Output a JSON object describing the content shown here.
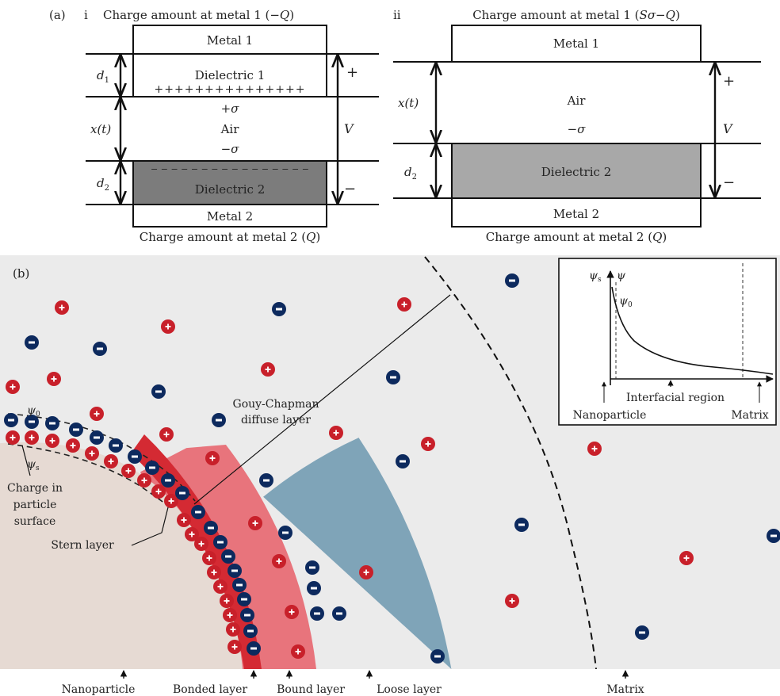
{
  "panel_a": {
    "label": "(a)",
    "i": {
      "roman": "i",
      "top_caption_prefix": "Charge amount at metal 1 (",
      "top_caption_math": "−Q",
      "top_caption_suffix": ")",
      "metal1": "Metal 1",
      "dielectric1": "Dielectric 1",
      "plus_row": "+++++++++++++++",
      "plus_sigma": "+σ",
      "air": "Air",
      "minus_sigma": "−σ",
      "minus_row": "− − − − − − − − − − − − − − − −",
      "dielectric2": "Dielectric 2",
      "metal2": "Metal 2",
      "d1": "d",
      "d1_sub": "1",
      "xt": "x(t)",
      "d2": "d",
      "d2_sub": "2",
      "plus": "+",
      "V": "V",
      "minus": "−",
      "bottom_caption_prefix": "Charge amount at metal 2 (",
      "bottom_caption_math": "Q",
      "bottom_caption_suffix": ")"
    },
    "ii": {
      "roman": "ii",
      "top_caption_prefix": "Charge amount at metal 1 (",
      "top_caption_math": "Sσ−Q",
      "top_caption_suffix": ")",
      "metal1": "Metal 1",
      "air": "Air",
      "minus_sigma": "−σ",
      "dielectric2": "Dielectric 2",
      "metal2": "Metal 2",
      "xt": "x(t)",
      "d2": "d",
      "d2_sub": "2",
      "plus": "+",
      "V": "V",
      "minus": "−",
      "bottom_caption_prefix": "Charge amount at metal 2 (",
      "bottom_caption_math": "Q",
      "bottom_caption_suffix": ")"
    }
  },
  "panel_b": {
    "label": "(b)",
    "psi0": "ψ",
    "psi0_sub": "0",
    "psis": "ψ",
    "psis_sub": "s",
    "charge_label": [
      "Charge in",
      "particle",
      "surface"
    ],
    "stern_label": "Stern layer",
    "gouy_label": [
      "Gouy-Chapman",
      "diffuse layer"
    ],
    "bottom_labels": {
      "nanoparticle": "Nanoparticle",
      "bonded": "Bonded layer",
      "bound": "Bound layer",
      "loose": "Loose layer",
      "matrix": "Matrix"
    },
    "inset": {
      "psi_s": "ψ",
      "psi_s_sub": "s",
      "psi": "ψ",
      "psi0": "ψ",
      "psi0_sub": "0",
      "interfacial": "Interfacial region",
      "nanoparticle": "Nanoparticle",
      "matrix": "Matrix"
    },
    "colors": {
      "positive_ion": "#c8202a",
      "negative_ion": "#0d2a5e",
      "nanoparticle": "#e6dad3",
      "bonded_layer": "#d42a33",
      "bound_layer": "#e8747c",
      "loose_layer": "#7fa4b8",
      "matrix_bg": "#ebebeb",
      "dielectric2_i": "#7c7c7c",
      "dielectric2_ii": "#a8a8a8"
    }
  }
}
